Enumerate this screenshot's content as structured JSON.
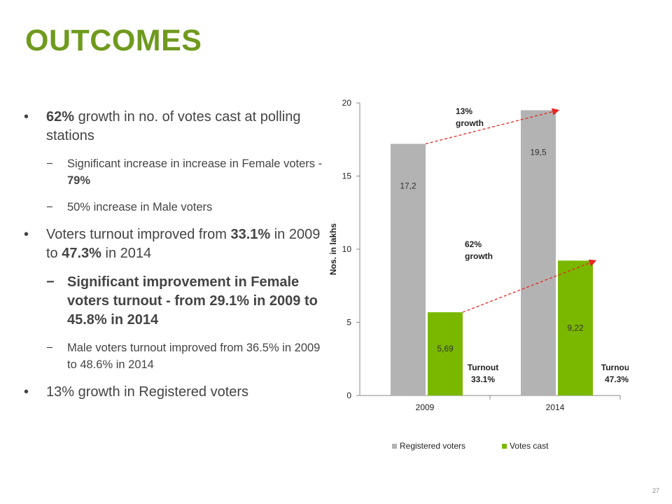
{
  "title": "OUTCOMES",
  "page_number": "27",
  "bullets": [
    {
      "lead": "62%",
      "text": " growth in no. of votes cast at polling stations",
      "sub": [
        {
          "pre": "Significant increase in increase in Female voters - ",
          "bold": "79%"
        },
        {
          "pre": "50% increase in Male voters",
          "bold": ""
        }
      ]
    },
    {
      "pre": "Voters turnout improved from ",
      "b1": "33.1%",
      "mid": " in 2009 to ",
      "b2": "47.3%",
      "post": " in 2014",
      "sub_bold": "Significant improvement in Female voters turnout - from 29.1% in 2009 to 45.8% in 2014",
      "sub_plain": "Male voters turnout improved from 36.5% in 2009 to 48.6% in 2014"
    },
    {
      "text": "13% growth in Registered voters"
    }
  ],
  "markers": {
    "bullet": "•",
    "dash": "−"
  },
  "chart_data": {
    "type": "bar",
    "categories": [
      "2009",
      "2014"
    ],
    "series": [
      {
        "name": "Registered voters",
        "values": [
          17.2,
          19.5
        ],
        "labels": [
          "17,2",
          "19,5"
        ],
        "color": "#b3b3b3"
      },
      {
        "name": "Votes cast",
        "values": [
          5.69,
          9.22
        ],
        "labels": [
          "5,69",
          "9,22"
        ],
        "color": "#7ab800"
      }
    ],
    "ylabel": "Nos. in lakhs",
    "ylim": [
      0,
      20
    ],
    "yticks": [
      0,
      5,
      10,
      15,
      20
    ],
    "grid": false,
    "legend": "bottom",
    "annotations": {
      "registered_growth": [
        "13%",
        "growth"
      ],
      "votes_growth": [
        "62%",
        "growth"
      ],
      "turnout_2009": [
        "Turnout",
        "33.1%"
      ],
      "turnout_2014": [
        "Turnout",
        "47.3%"
      ]
    },
    "arrow_color": "#e8251f"
  }
}
